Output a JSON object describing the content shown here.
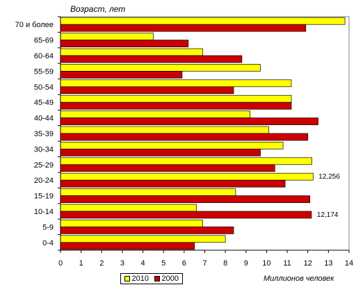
{
  "chart_data": {
    "type": "bar",
    "orientation": "horizontal",
    "ylabel": "Возраст, лет",
    "xlabel": "Миллионов человек",
    "categories": [
      "70 и более",
      "65-69",
      "60-64",
      "55-59",
      "50-54",
      "45-49",
      "40-44",
      "35-39",
      "30-34",
      "25-29",
      "20-24",
      "15-19",
      "10-14",
      "5-9",
      "0-4"
    ],
    "xlim": [
      0,
      14
    ],
    "xticks": [
      0,
      1,
      2,
      3,
      4,
      5,
      6,
      7,
      8,
      9,
      10,
      11,
      12,
      13,
      14
    ],
    "grid": false,
    "legend_position": "bottom",
    "series": [
      {
        "name": "2010",
        "color": "#FFFF00",
        "values": [
          13.8,
          4.5,
          6.9,
          9.7,
          11.2,
          11.2,
          9.2,
          10.1,
          10.8,
          12.2,
          12.256,
          8.5,
          6.6,
          6.9,
          8.0
        ]
      },
      {
        "name": "2000",
        "color": "#CC0000",
        "values": [
          11.9,
          6.2,
          8.8,
          5.9,
          8.4,
          11.2,
          12.5,
          12.0,
          9.7,
          10.4,
          10.9,
          12.1,
          12.174,
          8.4,
          6.5
        ]
      }
    ],
    "annotations": [
      {
        "text": "12,256",
        "category": "20-24",
        "series": "2010"
      },
      {
        "text": "12,174",
        "category": "10-14",
        "series": "2000"
      }
    ]
  }
}
